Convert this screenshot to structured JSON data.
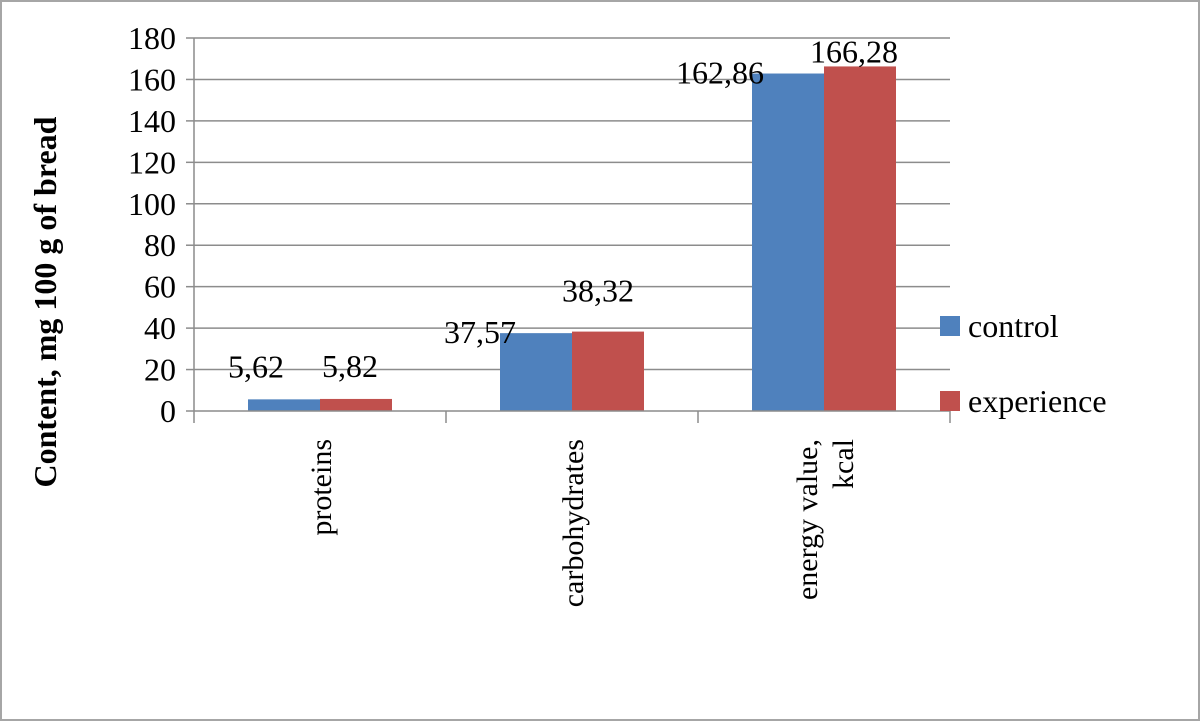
{
  "chart_data": {
    "type": "bar",
    "categories": [
      [
        "proteins"
      ],
      [
        "carbohydrates"
      ],
      [
        "energy value,",
        "kcal"
      ]
    ],
    "series": [
      {
        "name": "control",
        "values": [
          5.62,
          37.57,
          162.86
        ],
        "labels": [
          "5,62",
          "37,57",
          "162,86"
        ],
        "color": "#4f81bd"
      },
      {
        "name": "experience",
        "values": [
          5.82,
          38.32,
          166.28
        ],
        "labels": [
          "5,82",
          "38,32",
          "166,28"
        ],
        "color": "#c0504d"
      }
    ],
    "yticks": [
      "0",
      "20",
      "40",
      "60",
      "80",
      "100",
      "120",
      "140",
      "160",
      "180"
    ],
    "ylim": [
      0,
      180
    ],
    "ylabel": "Content, mg 100 g of bread",
    "xlabel": "",
    "title": "",
    "grid": true,
    "legend_position": "right"
  }
}
